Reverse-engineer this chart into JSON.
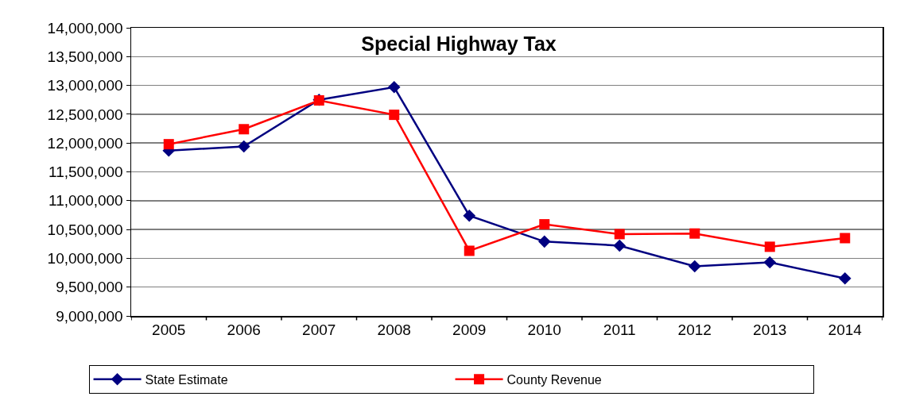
{
  "chart_data": {
    "type": "line",
    "title": "Special Highway Tax",
    "categories": [
      "2005",
      "2006",
      "2007",
      "2008",
      "2009",
      "2010",
      "2011",
      "2012",
      "2013",
      "2014"
    ],
    "series": [
      {
        "name": "State Estimate",
        "color": "#000080",
        "marker": "diamond",
        "values": [
          11870000,
          11940000,
          12750000,
          12970000,
          10740000,
          10290000,
          10220000,
          9860000,
          9930000,
          9650000
        ]
      },
      {
        "name": "County Revenue",
        "color": "#ff0000",
        "marker": "square",
        "values": [
          11980000,
          12240000,
          12740000,
          12490000,
          10130000,
          10590000,
          10420000,
          10430000,
          10200000,
          10350000
        ]
      }
    ],
    "ylim": [
      9000000,
      14000000
    ],
    "yticks": [
      {
        "value": 9000000,
        "label": "9,000,000"
      },
      {
        "value": 9500000,
        "label": "9,500,000"
      },
      {
        "value": 10000000,
        "label": "10,000,000"
      },
      {
        "value": 10500000,
        "label": "10,500,000"
      },
      {
        "value": 11000000,
        "label": "11,000,000"
      },
      {
        "value": 11500000,
        "label": "11,500,000"
      },
      {
        "value": 12000000,
        "label": "12,000,000"
      },
      {
        "value": 12500000,
        "label": "12,500,000"
      },
      {
        "value": 13000000,
        "label": "13,000,000"
      },
      {
        "value": 13500000,
        "label": "13,500,000"
      },
      {
        "value": 14000000,
        "label": "14,000,000"
      }
    ],
    "grid": "y",
    "legend": "bottom",
    "line_style": "solid"
  }
}
